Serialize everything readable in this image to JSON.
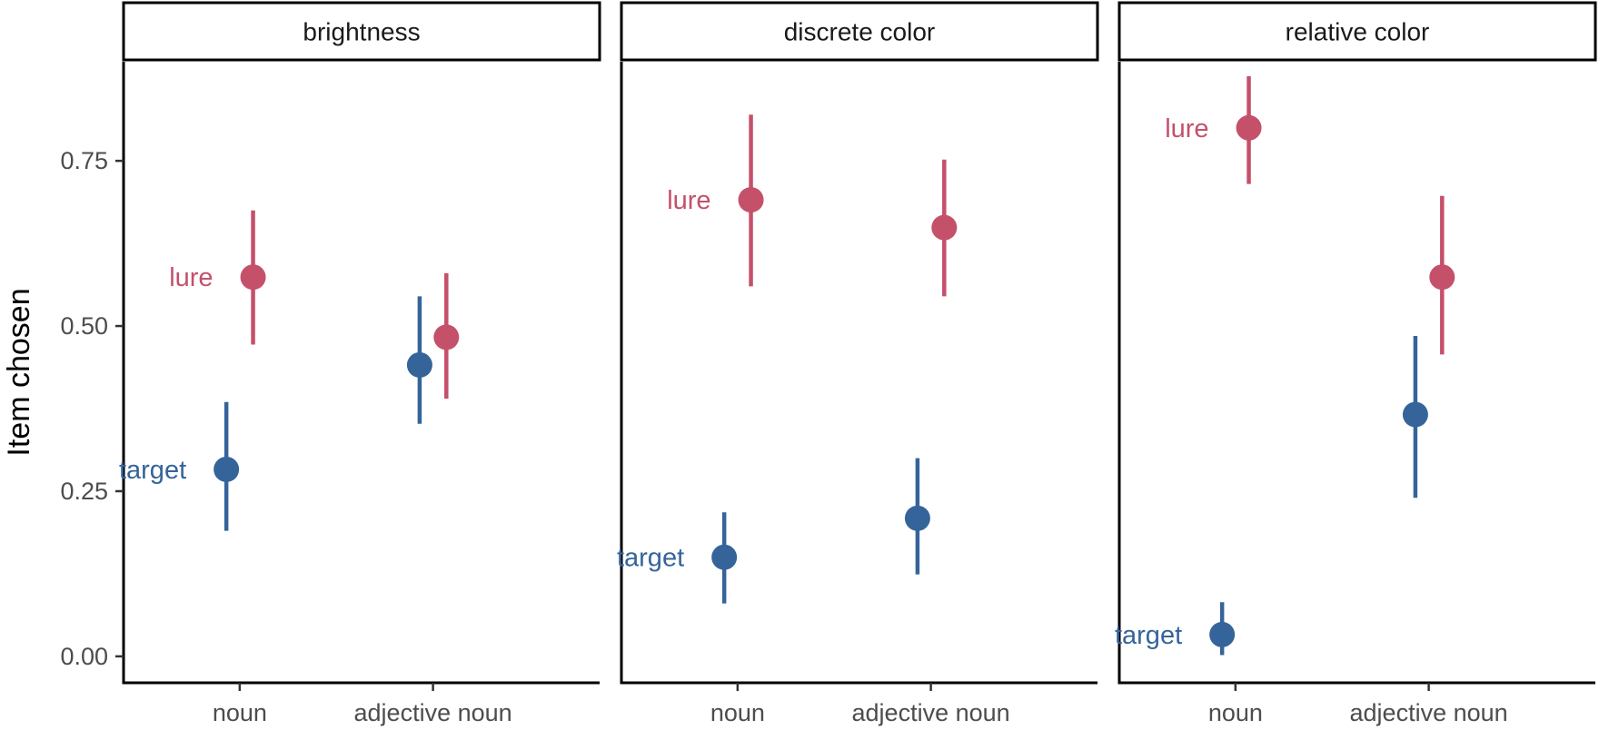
{
  "chart_data": {
    "type": "scatter",
    "ylabel": "Item chosen",
    "xlabel": "",
    "ylim": [
      -0.04,
      0.9
    ],
    "yticks": [
      "0.00",
      "0.25",
      "0.50",
      "0.75"
    ],
    "categories": [
      "noun",
      "adjective noun"
    ],
    "grid": false,
    "legend": "none (direct labels)",
    "colors": {
      "target": "#35649a",
      "lure": "#c5506a"
    },
    "facets": [
      {
        "title": "brightness",
        "series": [
          {
            "name": "target",
            "values": [
              0.283,
              0.441
            ],
            "lower": [
              0.19,
              0.352
            ],
            "upper": [
              0.385,
              0.545
            ]
          },
          {
            "name": "lure",
            "values": [
              0.574,
              0.483
            ],
            "lower": [
              0.472,
              0.39
            ],
            "upper": [
              0.675,
              0.58
            ]
          }
        ]
      },
      {
        "title": "discrete color",
        "series": [
          {
            "name": "target",
            "values": [
              0.15,
              0.209
            ],
            "lower": [
              0.08,
              0.124
            ],
            "upper": [
              0.218,
              0.3
            ]
          },
          {
            "name": "lure",
            "values": [
              0.691,
              0.649
            ],
            "lower": [
              0.56,
              0.545
            ],
            "upper": [
              0.82,
              0.752
            ]
          }
        ]
      },
      {
        "title": "relative color",
        "series": [
          {
            "name": "target",
            "values": [
              0.033,
              0.366
            ],
            "lower": [
              0.002,
              0.24
            ],
            "upper": [
              0.082,
              0.485
            ]
          },
          {
            "name": "lure",
            "values": [
              0.8,
              0.574
            ],
            "lower": [
              0.715,
              0.457
            ],
            "upper": [
              0.878,
              0.697
            ]
          }
        ]
      }
    ],
    "direct_labels": [
      {
        "facet": 0,
        "text": "lure",
        "series": "lure"
      },
      {
        "facet": 0,
        "text": "target",
        "series": "target"
      },
      {
        "facet": 1,
        "text": "lure",
        "series": "lure"
      },
      {
        "facet": 1,
        "text": "target",
        "series": "target"
      },
      {
        "facet": 2,
        "text": "lure",
        "series": "lure"
      },
      {
        "facet": 2,
        "text": "target",
        "series": "target"
      }
    ]
  }
}
